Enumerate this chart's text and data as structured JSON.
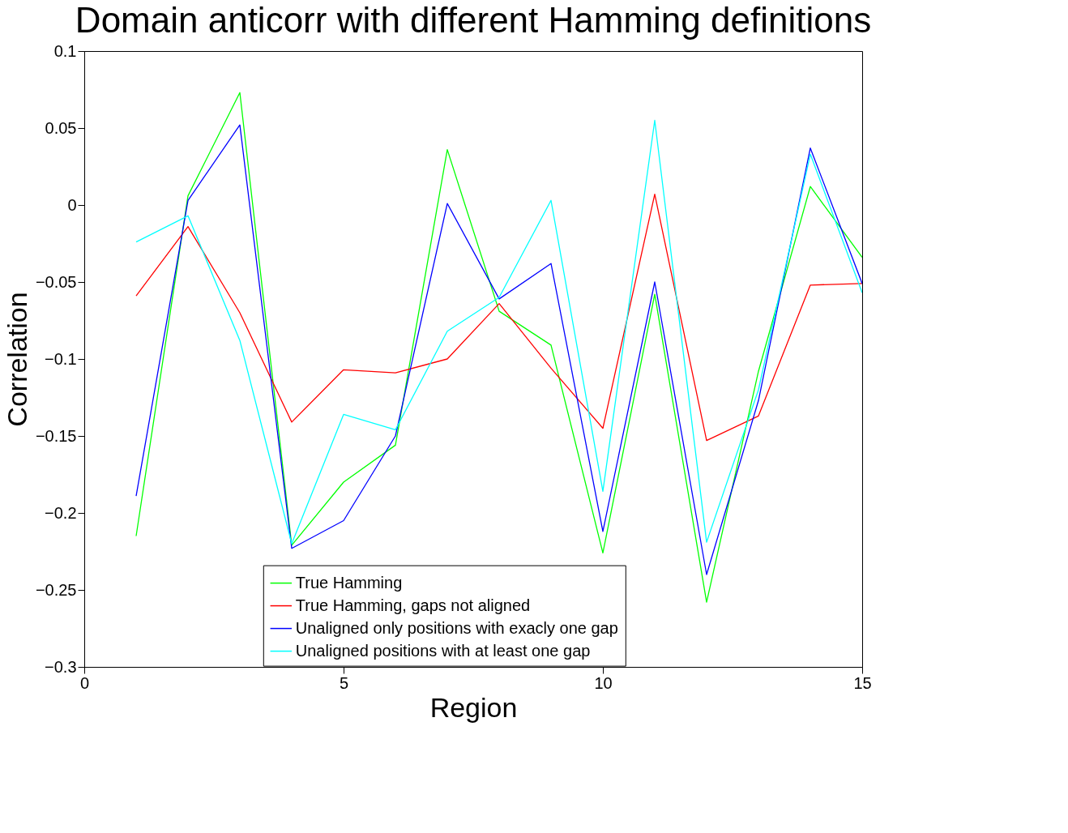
{
  "chart_data": {
    "type": "line",
    "title": "Domain anticorr with different Hamming definitions",
    "xlabel": "Region",
    "ylabel": "Correlation",
    "x": [
      1,
      2,
      3,
      4,
      5,
      6,
      7,
      8,
      9,
      10,
      11,
      12,
      13,
      14,
      15
    ],
    "xlim": [
      0,
      15
    ],
    "xticks": [
      0,
      5,
      10,
      15
    ],
    "ylim": [
      -0.3,
      0.1
    ],
    "yticks": [
      -0.3,
      -0.25,
      -0.2,
      -0.15,
      -0.1,
      -0.05,
      0,
      0.05,
      0.1
    ],
    "grid": false,
    "legend": "bottom",
    "marker": "none",
    "line_style": "solid",
    "series": [
      {
        "name": "True Hamming",
        "color": "#00ff00",
        "values": [
          -0.215,
          0.006,
          0.073,
          -0.221,
          -0.18,
          -0.156,
          0.036,
          -0.069,
          -0.091,
          -0.226,
          -0.058,
          -0.258,
          -0.108,
          0.012,
          -0.034
        ]
      },
      {
        "name": "True Hamming, gaps not aligned",
        "color": "#ff0000",
        "values": [
          -0.059,
          -0.014,
          -0.07,
          -0.141,
          -0.107,
          -0.109,
          -0.1,
          -0.064,
          -0.106,
          -0.145,
          0.007,
          -0.153,
          -0.137,
          -0.052,
          -0.051
        ]
      },
      {
        "name": "Unaligned only positions with exacly one gap",
        "color": "#0000ff",
        "values": [
          -0.189,
          0.003,
          0.052,
          -0.223,
          -0.205,
          -0.15,
          0.001,
          -0.061,
          -0.038,
          -0.212,
          -0.05,
          -0.24,
          -0.127,
          0.037,
          -0.051
        ]
      },
      {
        "name": "Unaligned positions with at least one gap",
        "color": "#00ffff",
        "values": [
          -0.024,
          -0.007,
          -0.088,
          -0.22,
          -0.136,
          -0.146,
          -0.082,
          -0.06,
          0.003,
          -0.186,
          0.055,
          -0.219,
          -0.12,
          0.033,
          -0.057
        ]
      }
    ]
  }
}
